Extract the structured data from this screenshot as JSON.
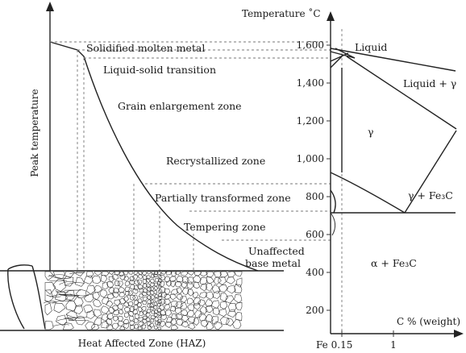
{
  "left_panel": {
    "y_axis_label": "Peak temperature",
    "x_axis_label": "Heat Affected Zone (HAZ)",
    "zones": [
      {
        "id": "solidified",
        "label": "Solidified molten metal"
      },
      {
        "id": "liquid-solid",
        "label": "Liquid-solid transition"
      },
      {
        "id": "grain-enlargement",
        "label": "Grain enlargement zone"
      },
      {
        "id": "recrystallized",
        "label": "Recrystallized zone"
      },
      {
        "id": "partially-transformed",
        "label": "Partially transformed zone"
      },
      {
        "id": "tempering",
        "label": "Tempering zone"
      },
      {
        "id": "unaffected-1",
        "label": "Unaffected"
      },
      {
        "id": "unaffected-2",
        "label": "base metal"
      }
    ]
  },
  "right_panel": {
    "y_axis_label": "Temperature ˚C",
    "x_axis_label": "C % (weight)",
    "x_ticks": [
      "Fe",
      "0.15",
      "1"
    ],
    "y_ticks": [
      "1,600",
      "1,400",
      "1,200",
      "1,000",
      "800",
      "600",
      "400",
      "200"
    ],
    "phase_labels": [
      {
        "id": "liquid",
        "label": "Liquid"
      },
      {
        "id": "liquid-gamma",
        "label": "Liquid + γ"
      },
      {
        "id": "gamma",
        "label": "γ"
      },
      {
        "id": "gamma-fe3c",
        "label": "γ + Fe₃C"
      },
      {
        "id": "alpha-fe3c",
        "label": "α + Fe₃C"
      }
    ]
  }
}
